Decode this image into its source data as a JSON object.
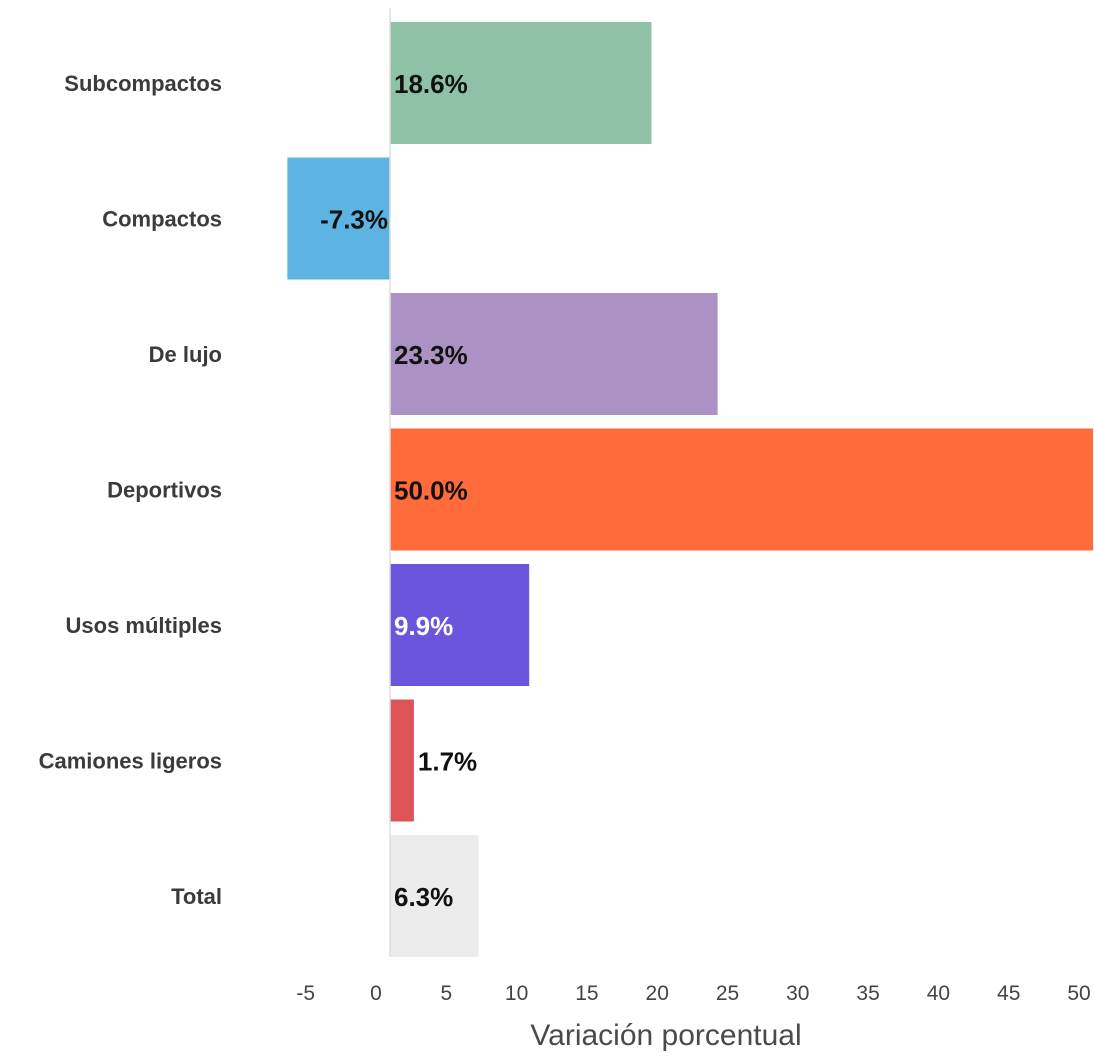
{
  "chart_data": {
    "type": "bar",
    "orientation": "horizontal",
    "categories": [
      "Subcompactos",
      "Compactos",
      "De lujo",
      "Deportivos",
      "Usos múltiples",
      "Camiones ligeros",
      "Total"
    ],
    "values": [
      18.6,
      -7.3,
      23.3,
      50.0,
      9.9,
      1.7,
      6.3
    ],
    "data_labels": [
      "18.6%",
      "-7.3%",
      "23.3%",
      "50.0%",
      "9.9%",
      "1.7%",
      "6.3%"
    ],
    "colors": [
      "#8fc1a6",
      "#5db3e2",
      "#ab91c4",
      "#ff6b3a",
      "#6b55dd",
      "#dd5458",
      "#ececec"
    ],
    "label_colors": [
      "#111111",
      "#111111",
      "#111111",
      "#111111",
      "#ffffff",
      "#111111",
      "#111111"
    ],
    "title": "",
    "xlabel": "Variación porcentual",
    "ylabel": "",
    "xlim": [
      -7.3,
      50
    ],
    "xticks": [
      -5,
      0,
      5,
      10,
      15,
      20,
      25,
      30,
      35,
      40,
      45,
      50
    ],
    "xtick_labels": [
      "-5",
      "0",
      "5",
      "10",
      "15",
      "20",
      "25",
      "30",
      "35",
      "40",
      "45",
      "50"
    ],
    "grid": false,
    "legend": "none"
  }
}
